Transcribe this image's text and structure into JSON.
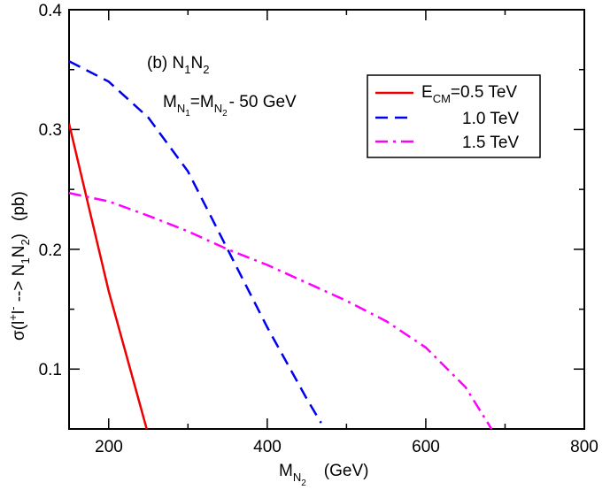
{
  "chart_data": {
    "type": "line",
    "title": "",
    "xlabel": {
      "main": "M",
      "sub": "N",
      "subsub": "2",
      "unit": "(GeV)"
    },
    "ylabel": {
      "prefix": "σ(l",
      "sup1": "+",
      "mid": "l",
      "sup2": "-",
      "arrow": " --> N",
      "sub1": "1",
      "n2": "N",
      "sub2": "2",
      "close": ")",
      "unit": "(pb)"
    },
    "xlim": [
      150,
      800
    ],
    "ylim": [
      0.05,
      0.4
    ],
    "xticks": [
      200,
      400,
      600,
      800
    ],
    "xtick_labels": [
      "200",
      "400",
      "600",
      "800"
    ],
    "yticks": [
      0.1,
      0.2,
      0.3,
      0.4
    ],
    "ytick_labels": [
      "0.1",
      "0.2",
      "0.3",
      "0.4"
    ],
    "annotations": {
      "panel": {
        "prefix": "(b) N",
        "s1": "1",
        "mid": "N",
        "s2": "2"
      },
      "mass": {
        "m1": "M",
        "n1": "N",
        "n1s": "1",
        "eq": "=M",
        "n2": "N",
        "n2s": "2",
        "tail": "- 50 GeV"
      }
    },
    "legend": {
      "position": "top-right",
      "entries": [
        {
          "main": "E",
          "sub": "CM",
          "rest": "=0.5 TeV"
        },
        {
          "main": "",
          "sub": "",
          "rest": "1.0 TeV"
        },
        {
          "main": "",
          "sub": "",
          "rest": "1.5 TeV"
        }
      ]
    },
    "series": [
      {
        "name": "E_CM=0.5 TeV",
        "color": "#ee0000",
        "dash": "solid",
        "x": [
          150,
          175,
          200,
          225,
          248
        ],
        "y": [
          0.305,
          0.235,
          0.165,
          0.105,
          0.05
        ]
      },
      {
        "name": "1.0 TeV",
        "color": "#0000ee",
        "dash": "dashed",
        "x": [
          150,
          200,
          250,
          300,
          350,
          400,
          450,
          468
        ],
        "y": [
          0.357,
          0.34,
          0.31,
          0.265,
          0.2,
          0.135,
          0.075,
          0.055
        ]
      },
      {
        "name": "1.5 TeV",
        "color": "#ff00ff",
        "dash": "dashdot",
        "x": [
          150,
          200,
          250,
          300,
          350,
          400,
          450,
          500,
          550,
          600,
          650,
          683
        ],
        "y": [
          0.247,
          0.24,
          0.228,
          0.215,
          0.2,
          0.187,
          0.172,
          0.157,
          0.14,
          0.118,
          0.085,
          0.05
        ]
      }
    ]
  }
}
